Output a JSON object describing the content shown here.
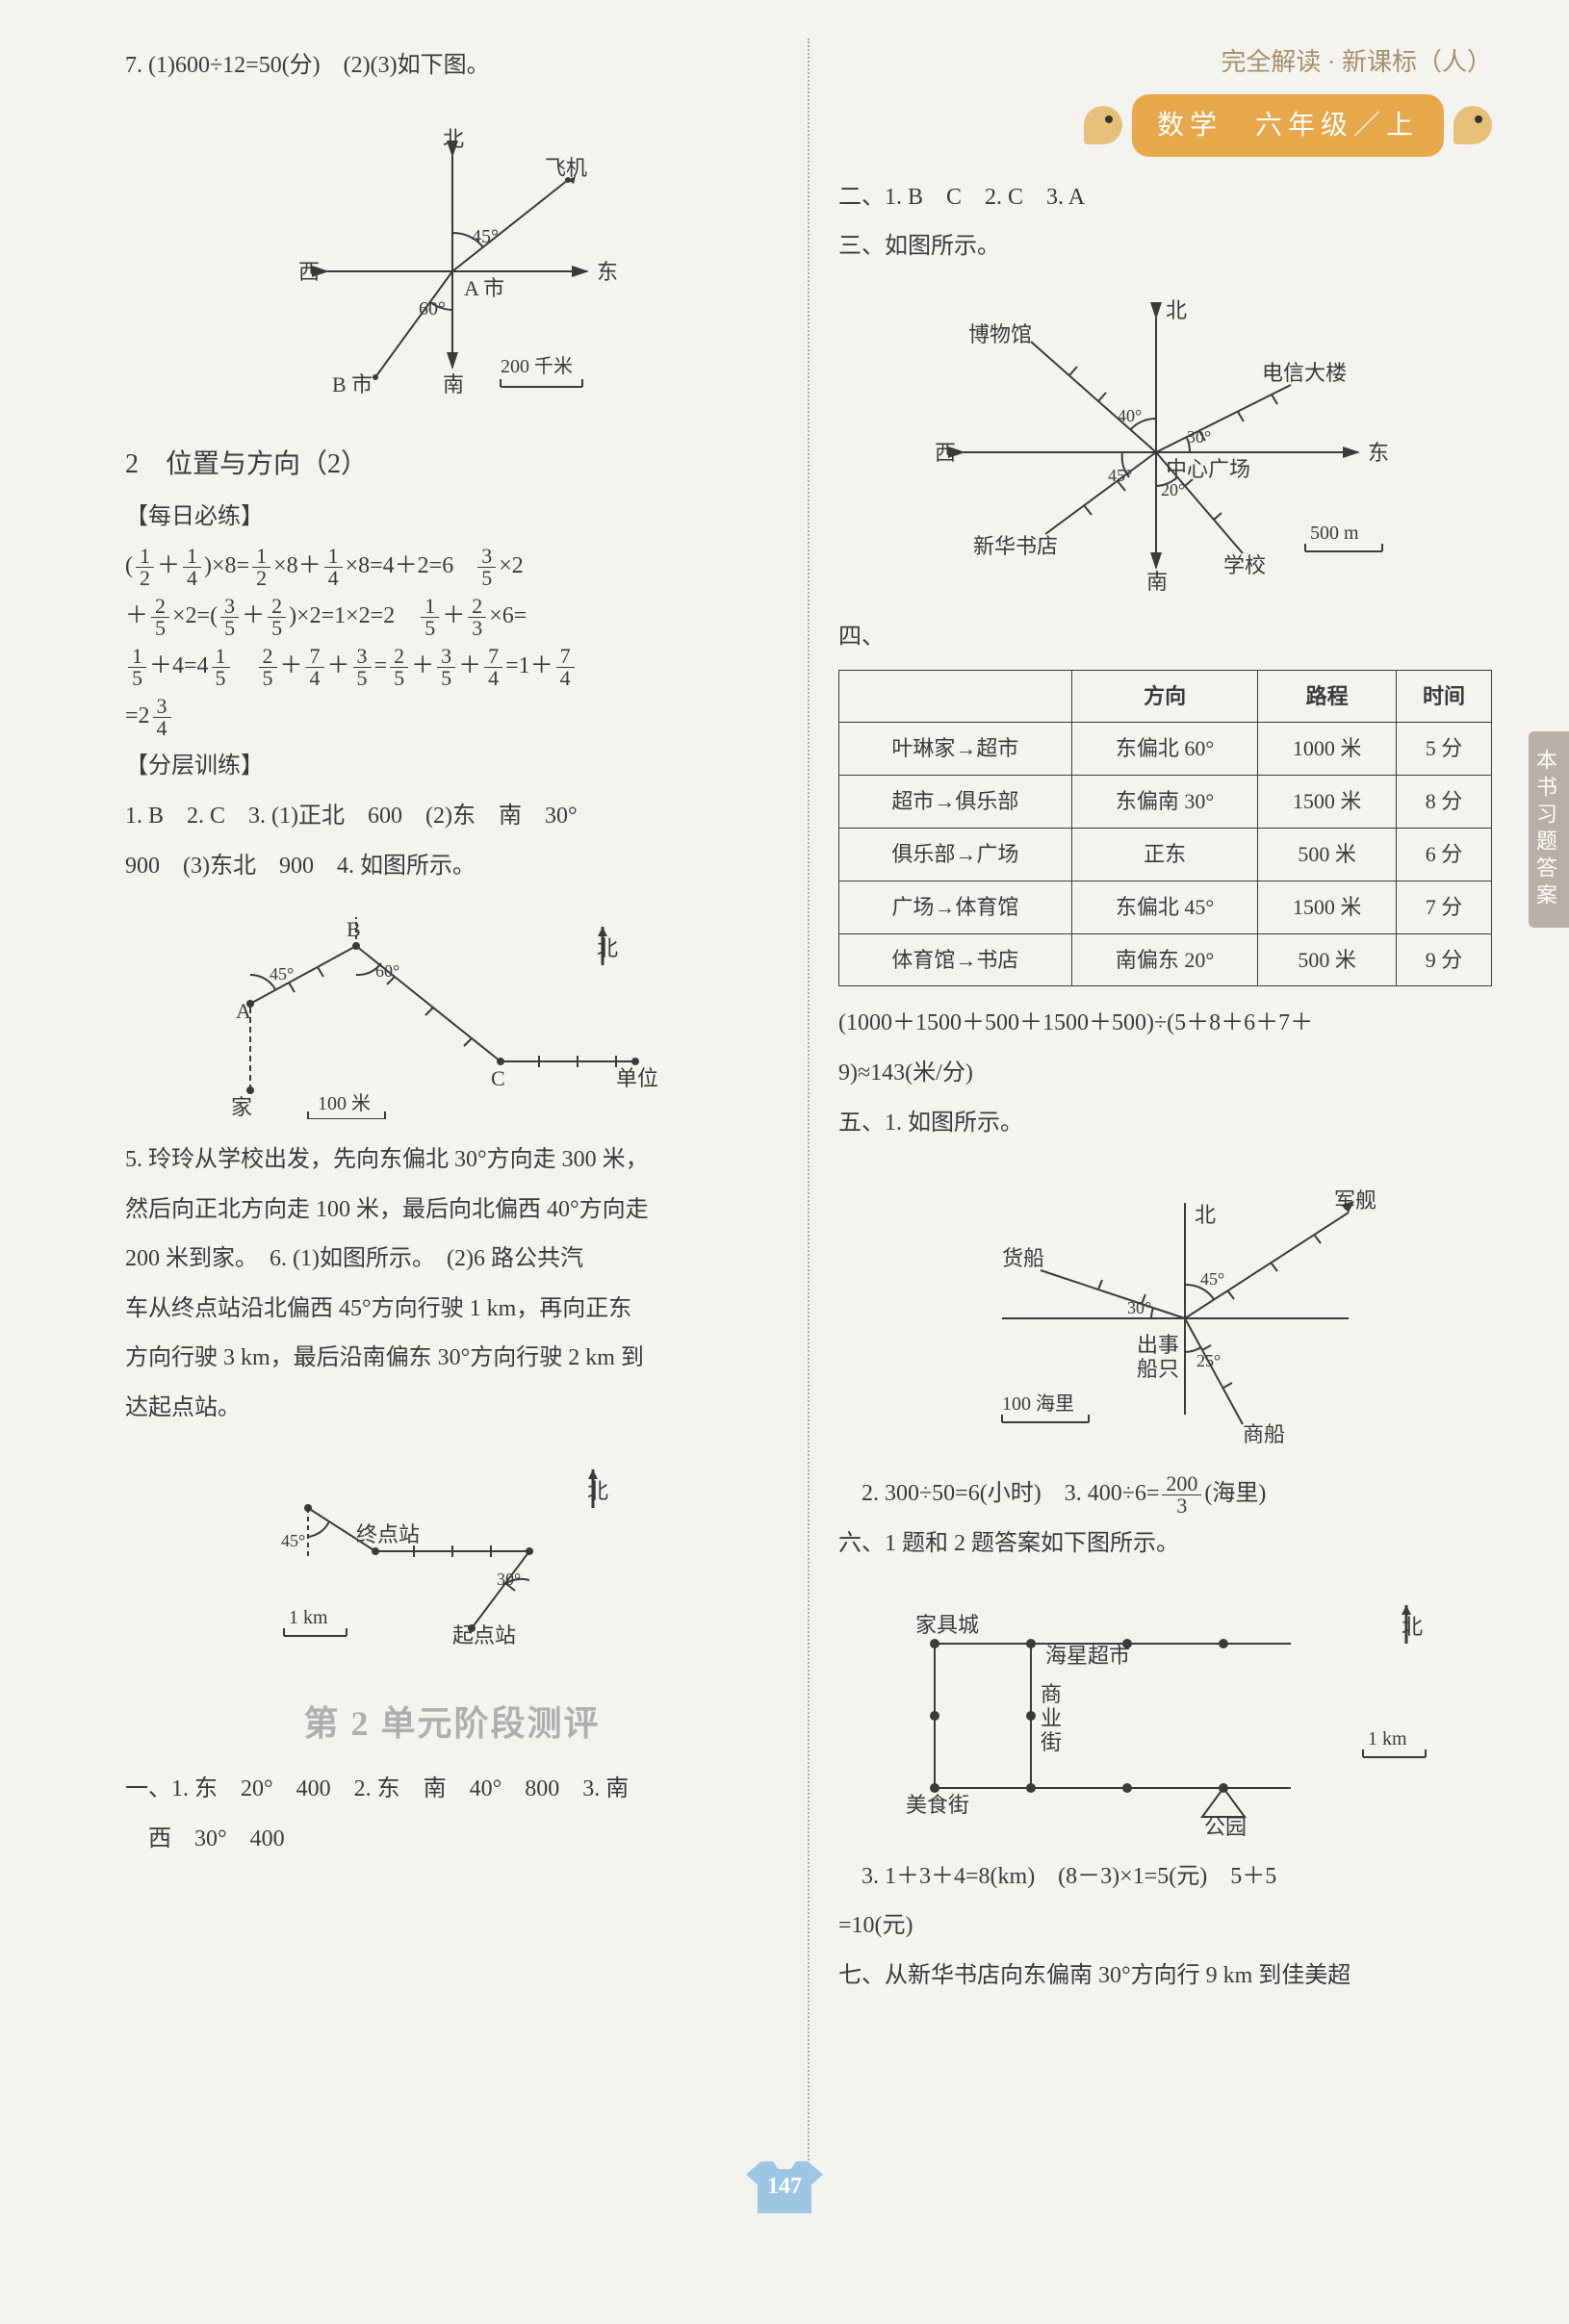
{
  "header": {
    "series": "完全解读 · 新课标（人）",
    "ribbon_subject": "数学",
    "ribbon_grade": "六年级／上"
  },
  "side_tab": "本书习题答案",
  "page_number": "147",
  "left": {
    "q7": "7. (1)600÷12=50(分)　(2)(3)如下图。",
    "fig1": {
      "n": "北",
      "s": "南",
      "e": "东",
      "w": "西",
      "plane": "飞机",
      "a": "A 市",
      "b": "B 市",
      "ang1": "45°",
      "ang2": "60°",
      "scale": "200 千米"
    },
    "sec2_title": "2　位置与方向（2）",
    "daily": "【每日必练】",
    "tier": "【分层训练】",
    "tier_line1": "1. B　2. C　3. (1)正北　600　(2)东　南　30°",
    "tier_line2": "900　(3)东北　900　4. 如图所示。",
    "fig2": {
      "home": "家",
      "unit": "单位",
      "n": "北",
      "a": "A",
      "b": "B",
      "c": "C",
      "ang1": "45°",
      "ang2": "60°",
      "scale": "100 米"
    },
    "q5_l1": "5. 玲玲从学校出发，先向东偏北 30°方向走 300 米，",
    "q5_l2": "然后向正北方向走 100 米，最后向北偏西 40°方向走",
    "q5_l3": "200 米到家。　6. (1)如图所示。　(2)6 路公共汽",
    "q5_l4": "车从终点站沿北偏西 45°方向行驶 1 km，再向正东",
    "q5_l5": "方向行驶 3 km，最后沿南偏东 30°方向行驶 2 km 到",
    "q5_l6": "达起点站。",
    "fig3": {
      "end": "终点站",
      "start": "起点站",
      "n": "北",
      "ang1": "45°",
      "ang2": "30°",
      "scale": "1 km"
    },
    "unit_title": "第 2 单元阶段测评",
    "one_l1": "一、1. 东　20°　400　2. 东　南　40°　800　3. 南",
    "one_l2": "　西　30°　400"
  },
  "right": {
    "two": "二、1. B　C　2. C　3. A",
    "three": "三、如图所示。",
    "fig4": {
      "n": "北",
      "s": "南",
      "e": "东",
      "w": "西",
      "museum": "博物馆",
      "tele": "电信大楼",
      "center": "中心广场",
      "xinhua": "新华书店",
      "school": "学校",
      "a40": "40°",
      "a30": "30°",
      "a45": "45°",
      "a20": "20°",
      "scale": "500 m"
    },
    "four": "四、",
    "table": {
      "headers": [
        "",
        "方向",
        "路程",
        "时间"
      ],
      "rows": [
        [
          "叶琳家→超市",
          "东偏北 60°",
          "1000 米",
          "5 分"
        ],
        [
          "超市→俱乐部",
          "东偏南 30°",
          "1500 米",
          "8 分"
        ],
        [
          "俱乐部→广场",
          "正东",
          "500 米",
          "6 分"
        ],
        [
          "广场→体育馆",
          "东偏北 45°",
          "1500 米",
          "7 分"
        ],
        [
          "体育馆→书店",
          "南偏东 20°",
          "500 米",
          "9 分"
        ]
      ]
    },
    "calc_l1": "(1000＋1500＋500＋1500＋500)÷(5＋8＋6＋7＋",
    "calc_l2": "9)≈143(米/分)",
    "five": "五、1. 如图所示。",
    "fig5": {
      "n": "北",
      "warship": "军舰",
      "cargo": "货船",
      "accident1": "出事",
      "accident2": "船只",
      "merchant": "商船",
      "a45": "45°",
      "a30": "30°",
      "a25": "25°",
      "scale": "100 海里"
    },
    "q52": "　2. 300÷50=6(小时)　3. 400÷6=",
    "q52b": "(海里)",
    "six": "六、1 题和 2 题答案如下图所示。",
    "fig6": {
      "furn": "家具城",
      "haixing": "海星超市",
      "comm1": "商",
      "comm2": "业",
      "comm3": "街",
      "food": "美食街",
      "park": "公园",
      "n": "北",
      "scale": "1 km"
    },
    "q63": "　3. 1＋3＋4=8(km)　(8－3)×1=5(元)　5＋5",
    "q63b": "=10(元)",
    "seven": "七、从新华书店向东偏南 30°方向行 9 km 到佳美超"
  },
  "colors": {
    "text": "#3a3a3a",
    "accent": "#e6a84a",
    "tab": "#b8afa6",
    "shirt": "#9cc6e4"
  }
}
